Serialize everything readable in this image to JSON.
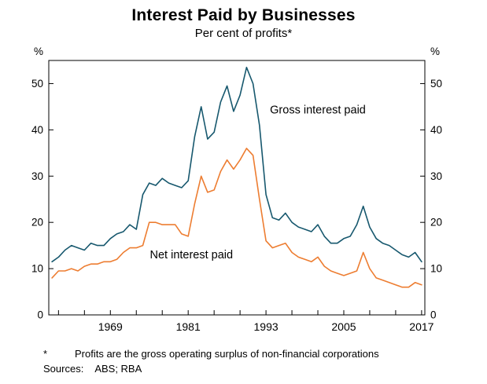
{
  "chart_data": {
    "type": "line",
    "title": "Interest Paid by Businesses",
    "subtitle": "Per cent of profits*",
    "unit_label": "%",
    "grid": false,
    "legend": "inline-annotations",
    "xlim": [
      1959.5,
      2017.5
    ],
    "ylim": [
      0,
      55
    ],
    "yticks": [
      0,
      10,
      20,
      30,
      40,
      50
    ],
    "xticks_labeled": [
      1969,
      1981,
      1993,
      2005,
      2017
    ],
    "xticks_minor_start": 1961,
    "xticks_minor_step": 4,
    "x": [
      1960,
      1961,
      1962,
      1963,
      1964,
      1965,
      1966,
      1967,
      1968,
      1969,
      1970,
      1971,
      1972,
      1973,
      1974,
      1975,
      1976,
      1977,
      1978,
      1979,
      1980,
      1981,
      1982,
      1983,
      1984,
      1985,
      1986,
      1987,
      1988,
      1989,
      1990,
      1991,
      1992,
      1993,
      1994,
      1995,
      1996,
      1997,
      1998,
      1999,
      2000,
      2001,
      2002,
      2003,
      2004,
      2005,
      2006,
      2007,
      2008,
      2009,
      2010,
      2011,
      2012,
      2013,
      2014,
      2015,
      2016,
      2017
    ],
    "series": [
      {
        "name": "Gross interest paid",
        "color": "#17586e",
        "label_pos": {
          "x": 2001,
          "y": 43.5
        },
        "values": [
          11.5,
          12.5,
          14,
          15,
          14.5,
          14,
          15.5,
          15,
          15,
          16.5,
          17.5,
          18,
          19.5,
          18.5,
          26,
          28.5,
          28,
          29.5,
          28.5,
          28,
          27.5,
          29,
          38.5,
          45,
          38,
          39.5,
          46,
          49.5,
          44,
          47.5,
          53.5,
          50,
          41,
          26,
          21,
          20.5,
          22,
          20,
          19,
          18.5,
          18,
          19.5,
          17,
          15.5,
          15.5,
          16.5,
          17,
          19.5,
          23.5,
          19,
          16.5,
          15.5,
          15,
          14,
          13,
          12.5,
          13.5,
          11.5
        ]
      },
      {
        "name": "Net interest paid",
        "color": "#ed7d31",
        "label_pos": {
          "x": 1981.5,
          "y": 12.2
        },
        "values": [
          8,
          9.5,
          9.5,
          10,
          9.5,
          10.5,
          11,
          11,
          11.5,
          11.5,
          12,
          13.5,
          14.5,
          14.5,
          15,
          20,
          20,
          19.5,
          19.5,
          19.5,
          17.5,
          17,
          24,
          30,
          26.5,
          27,
          31,
          33.5,
          31.5,
          33.5,
          36,
          34.5,
          25,
          16,
          14.5,
          15,
          15.5,
          13.5,
          12.5,
          12,
          11.5,
          12.5,
          10.5,
          9.5,
          9,
          8.5,
          9,
          9.5,
          13.5,
          10,
          8,
          7.5,
          7,
          6.5,
          6,
          6,
          7,
          6.5
        ]
      }
    ]
  },
  "footnote": {
    "marker": "*",
    "text": "Profits are the gross operating surplus of non-financial corporations"
  },
  "sources": {
    "label": "Sources:",
    "text": "ABS; RBA"
  }
}
